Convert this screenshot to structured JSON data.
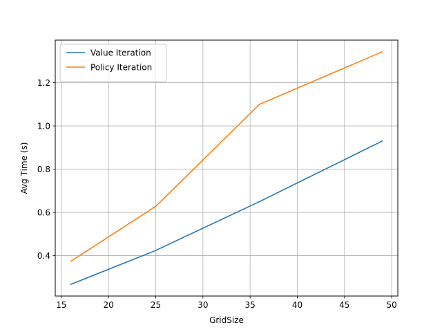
{
  "chart_data": {
    "type": "line",
    "title": "",
    "xlabel": "GridSize",
    "ylabel": "Avg Time (s)",
    "x": [
      16,
      25,
      36,
      49
    ],
    "series": [
      {
        "name": "Value Iteration",
        "color": "#1f77b4",
        "values": [
          0.267,
          0.424,
          0.65,
          0.93
        ]
      },
      {
        "name": "Policy Iteration",
        "color": "#ff7f0e",
        "values": [
          0.374,
          0.628,
          1.1,
          1.343
        ]
      }
    ],
    "xlim": [
      14.35,
      50.65
    ],
    "ylim": [
      0.213,
      1.397
    ],
    "xticks": [
      15,
      20,
      25,
      30,
      35,
      40,
      45,
      50
    ],
    "yticks": [
      0.4,
      0.6,
      0.8,
      1.0,
      1.2
    ],
    "ytick_labels": [
      "0.4",
      "0.6",
      "0.8",
      "1.0",
      "1.2"
    ],
    "grid": true,
    "legend_position": "top-left"
  }
}
